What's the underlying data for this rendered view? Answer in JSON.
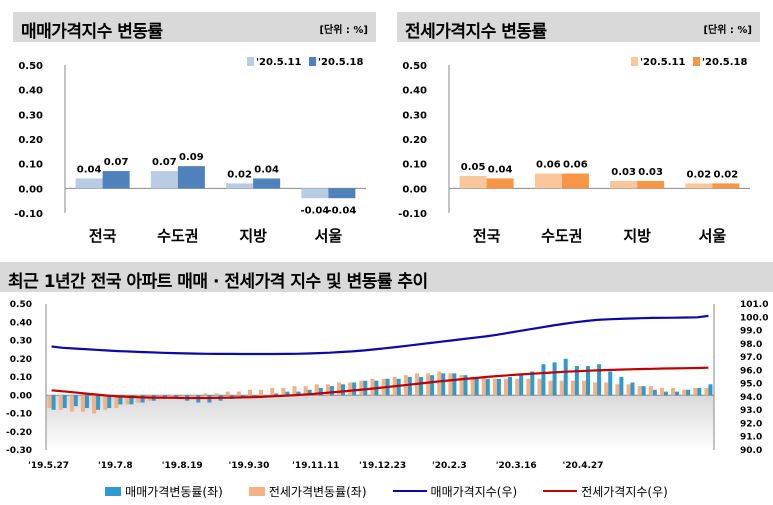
{
  "panels": {
    "left": {
      "title": "매매가격지수 변동률",
      "unit": "[단위 : %]"
    },
    "right": {
      "title": "전세가격지수 변동률",
      "unit": "[단위 : %]"
    },
    "bottom": {
      "title": "최근 1년간 전국 아파트 매매 · 전세가격 지수 및 변동률 추이"
    }
  },
  "colors": {
    "sale_prev": "#b8cce4",
    "sale_curr": "#4f81bd",
    "jeonse_prev": "#f9c79b",
    "jeonse_curr": "#f79646",
    "sale_change": "#2e9ad0",
    "jeonse_change": "#f4b183",
    "sale_index": "#0a0aa8",
    "jeonse_index": "#c00000"
  },
  "chart_data": [
    {
      "type": "bar",
      "title": "매매가격지수 변동률",
      "categories": [
        "전국",
        "수도권",
        "지방",
        "서울"
      ],
      "series": [
        {
          "name": "'20.5.11",
          "values": [
            0.04,
            0.07,
            0.02,
            -0.04
          ]
        },
        {
          "name": "'20.5.18",
          "values": [
            0.07,
            0.09,
            0.04,
            -0.04
          ]
        }
      ],
      "data_labels": [
        [
          "0.04",
          "0.07",
          "0.02",
          "-0.04"
        ],
        [
          "0.07",
          "0.09",
          "0.04",
          "-0.04"
        ]
      ],
      "y_ticks": [
        "0.50",
        "0.40",
        "0.30",
        "0.20",
        "0.10",
        "0.00",
        "-0.10"
      ],
      "ylim": [
        -0.1,
        0.5
      ],
      "legend": "top-right"
    },
    {
      "type": "bar",
      "title": "전세가격지수 변동률",
      "categories": [
        "전국",
        "수도권",
        "지방",
        "서울"
      ],
      "series": [
        {
          "name": "'20.5.11",
          "values": [
            0.05,
            0.06,
            0.03,
            0.02
          ]
        },
        {
          "name": "'20.5.18",
          "values": [
            0.04,
            0.06,
            0.03,
            0.02
          ]
        }
      ],
      "data_labels": [
        [
          "0.05",
          "0.06",
          "0.03",
          "0.02"
        ],
        [
          "0.04",
          "0.06",
          "0.03",
          "0.02"
        ]
      ],
      "y_ticks": [
        "0.50",
        "0.40",
        "0.30",
        "0.20",
        "0.10",
        "0.00",
        "-0.10"
      ],
      "ylim": [
        -0.1,
        0.5
      ],
      "legend": "top-right"
    },
    {
      "type": "bar",
      "title": "최근 1년간 전국 아파트 매매 · 전세가격 지수 및 변동률 추이",
      "x_tick_labels": [
        "'19.5.27",
        "'19.7.8",
        "'19.8.19",
        "'19.9.30",
        "'19.11.11",
        "'19.12.23",
        "'20.2.3",
        "'20.3.16",
        "'20.4.27"
      ],
      "y_left_ticks": [
        "0.50",
        "0.40",
        "0.30",
        "0.20",
        "0.10",
        "0.00",
        "-0.10",
        "-0.20",
        "-0.30"
      ],
      "y_right_ticks": [
        "101.0",
        "100.0",
        "99.0",
        "98.0",
        "97.0",
        "96.0",
        "95.0",
        "94.0",
        "93.0",
        "92.0",
        "91.0",
        "90.0"
      ],
      "ylim_left": [
        -0.3,
        0.5
      ],
      "ylim_right": [
        90,
        101
      ],
      "legend": "bottom",
      "series": [
        {
          "name": "매매가격변동률(좌)",
          "type": "bar",
          "axis": "left",
          "values": [
            -0.08,
            -0.07,
            -0.06,
            -0.07,
            -0.08,
            -0.07,
            -0.05,
            -0.05,
            -0.04,
            -0.03,
            -0.02,
            -0.02,
            -0.03,
            -0.04,
            -0.04,
            -0.03,
            -0.02,
            -0.01,
            -0.01,
            0,
            0.01,
            0.02,
            0.02,
            0.03,
            0.04,
            0.05,
            0.06,
            0.07,
            0.08,
            0.08,
            0.09,
            0.09,
            0.1,
            0.1,
            0.11,
            0.12,
            0.12,
            0.11,
            0.1,
            0.09,
            0.09,
            0.1,
            0.11,
            0.13,
            0.17,
            0.18,
            0.2,
            0.16,
            0.16,
            0.17,
            0.13,
            0.1,
            0.07,
            0.05,
            0.03,
            0.02,
            0.02,
            0.03,
            0.04,
            0.06
          ]
        },
        {
          "name": "전세가격변동률(좌)",
          "type": "bar",
          "axis": "left",
          "values": [
            -0.07,
            -0.08,
            -0.09,
            -0.09,
            -0.1,
            -0.08,
            -0.07,
            -0.05,
            -0.04,
            -0.03,
            -0.02,
            -0.01,
            0,
            0,
            0.01,
            0.01,
            0.02,
            0.02,
            0.03,
            0.03,
            0.04,
            0.04,
            0.05,
            0.05,
            0.06,
            0.06,
            0.07,
            0.07,
            0.08,
            0.09,
            0.09,
            0.1,
            0.11,
            0.12,
            0.12,
            0.13,
            0.12,
            0.11,
            0.1,
            0.1,
            0.09,
            0.09,
            0.09,
            0.09,
            0.09,
            0.08,
            0.08,
            0.08,
            0.08,
            0.07,
            0.07,
            0.06,
            0.06,
            0.05,
            0.05,
            0.04,
            0.04,
            0.03,
            0.04,
            0.04
          ]
        },
        {
          "name": "매매가격지수(우)",
          "type": "line",
          "axis": "right",
          "values": [
            97.8,
            97.7,
            97.65,
            97.6,
            97.55,
            97.5,
            97.45,
            97.42,
            97.38,
            97.35,
            97.32,
            97.3,
            97.28,
            97.26,
            97.25,
            97.24,
            97.24,
            97.23,
            97.23,
            97.23,
            97.23,
            97.24,
            97.25,
            97.27,
            97.3,
            97.33,
            97.38,
            97.43,
            97.5,
            97.58,
            97.67,
            97.76,
            97.86,
            97.96,
            98.06,
            98.16,
            98.26,
            98.36,
            98.46,
            98.56,
            98.68,
            98.82,
            98.96,
            99.1,
            99.24,
            99.38,
            99.5,
            99.62,
            99.72,
            99.8,
            99.85,
            99.88,
            99.91,
            99.93,
            99.95,
            99.96,
            99.97,
            99.98,
            100.0,
            100.1
          ]
        },
        {
          "name": "전세가격지수(우)",
          "type": "line",
          "axis": "right",
          "values": [
            94.5,
            94.42,
            94.35,
            94.26,
            94.18,
            94.1,
            94.04,
            94.0,
            93.97,
            93.95,
            93.94,
            93.93,
            93.92,
            93.92,
            93.92,
            93.93,
            93.94,
            93.96,
            93.98,
            94.01,
            94.05,
            94.09,
            94.14,
            94.2,
            94.26,
            94.33,
            94.4,
            94.48,
            94.56,
            94.64,
            94.73,
            94.82,
            94.91,
            95.0,
            95.09,
            95.18,
            95.27,
            95.35,
            95.42,
            95.5,
            95.57,
            95.63,
            95.69,
            95.74,
            95.79,
            95.84,
            95.89,
            95.93,
            95.97,
            96.0,
            96.03,
            96.06,
            96.08,
            96.1,
            96.12,
            96.14,
            96.15,
            96.16,
            96.18,
            96.2
          ]
        }
      ]
    }
  ]
}
